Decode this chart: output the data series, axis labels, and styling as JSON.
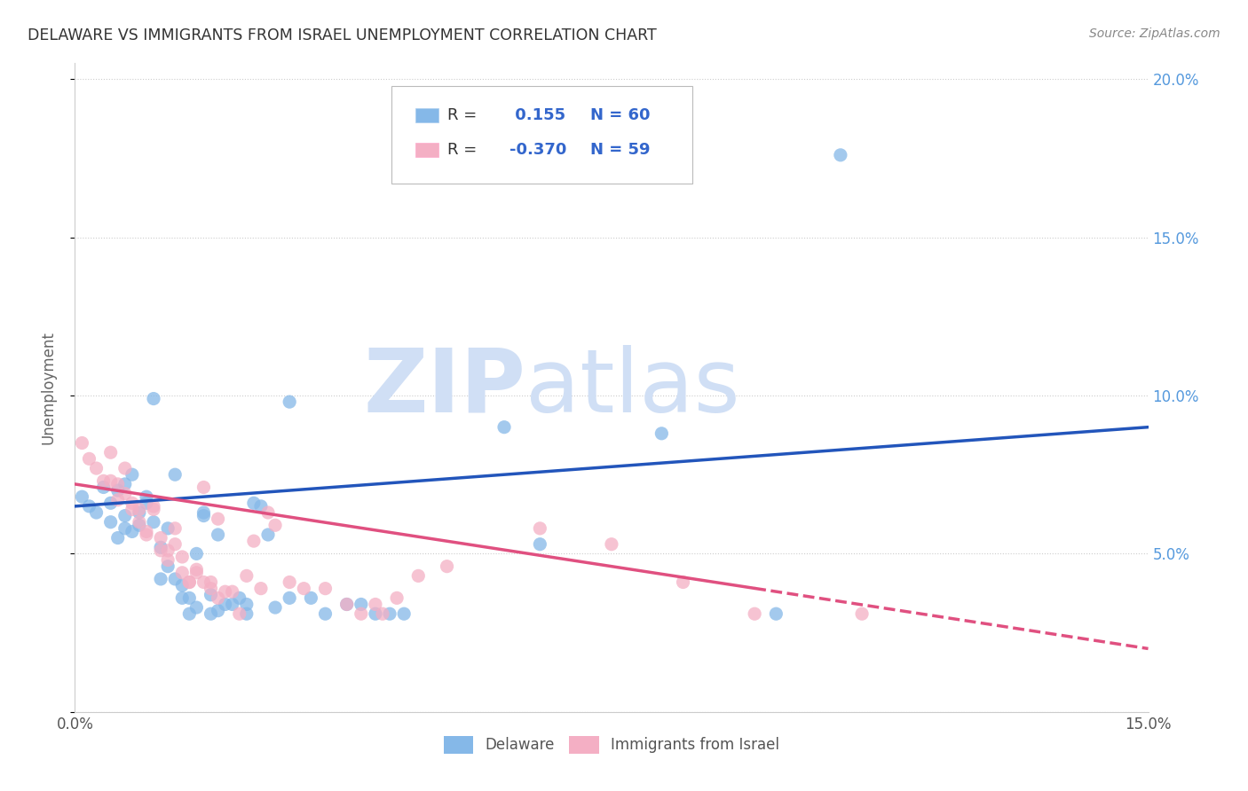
{
  "title": "DELAWARE VS IMMIGRANTS FROM ISRAEL UNEMPLOYMENT CORRELATION CHART",
  "source": "Source: ZipAtlas.com",
  "ylabel": "Unemployment",
  "x_min": 0.0,
  "x_max": 0.15,
  "y_min": 0.0,
  "y_max": 0.205,
  "delaware_color": "#85b8e8",
  "israel_color": "#f4afc4",
  "trend_delaware_color": "#2255bb",
  "trend_israel_color": "#e05080",
  "legend_label_1": "Delaware",
  "legend_label_2": "Immigrants from Israel",
  "R_delaware": 0.155,
  "N_delaware": 60,
  "R_israel": -0.37,
  "N_israel": 59,
  "watermark_zip": "ZIP",
  "watermark_atlas": "atlas",
  "watermark_color": "#d0dff5",
  "background_color": "#ffffff",
  "delaware_scatter": [
    [
      0.001,
      0.068
    ],
    [
      0.002,
      0.065
    ],
    [
      0.003,
      0.063
    ],
    [
      0.004,
      0.071
    ],
    [
      0.005,
      0.06
    ],
    [
      0.005,
      0.066
    ],
    [
      0.006,
      0.055
    ],
    [
      0.006,
      0.07
    ],
    [
      0.007,
      0.058
    ],
    [
      0.007,
      0.062
    ],
    [
      0.007,
      0.072
    ],
    [
      0.008,
      0.057
    ],
    [
      0.008,
      0.075
    ],
    [
      0.009,
      0.063
    ],
    [
      0.009,
      0.059
    ],
    [
      0.01,
      0.066
    ],
    [
      0.01,
      0.068
    ],
    [
      0.011,
      0.06
    ],
    [
      0.011,
      0.099
    ],
    [
      0.012,
      0.052
    ],
    [
      0.012,
      0.042
    ],
    [
      0.013,
      0.046
    ],
    [
      0.013,
      0.058
    ],
    [
      0.014,
      0.042
    ],
    [
      0.014,
      0.075
    ],
    [
      0.015,
      0.04
    ],
    [
      0.015,
      0.036
    ],
    [
      0.016,
      0.036
    ],
    [
      0.016,
      0.031
    ],
    [
      0.017,
      0.033
    ],
    [
      0.017,
      0.05
    ],
    [
      0.018,
      0.063
    ],
    [
      0.018,
      0.062
    ],
    [
      0.019,
      0.037
    ],
    [
      0.019,
      0.031
    ],
    [
      0.02,
      0.056
    ],
    [
      0.02,
      0.032
    ],
    [
      0.021,
      0.034
    ],
    [
      0.022,
      0.034
    ],
    [
      0.023,
      0.036
    ],
    [
      0.024,
      0.034
    ],
    [
      0.024,
      0.031
    ],
    [
      0.025,
      0.066
    ],
    [
      0.026,
      0.065
    ],
    [
      0.027,
      0.056
    ],
    [
      0.028,
      0.033
    ],
    [
      0.03,
      0.098
    ],
    [
      0.03,
      0.036
    ],
    [
      0.033,
      0.036
    ],
    [
      0.035,
      0.031
    ],
    [
      0.038,
      0.034
    ],
    [
      0.04,
      0.034
    ],
    [
      0.042,
      0.031
    ],
    [
      0.044,
      0.031
    ],
    [
      0.046,
      0.031
    ],
    [
      0.06,
      0.09
    ],
    [
      0.065,
      0.053
    ],
    [
      0.082,
      0.088
    ],
    [
      0.098,
      0.031
    ],
    [
      0.107,
      0.176
    ]
  ],
  "israel_scatter": [
    [
      0.001,
      0.085
    ],
    [
      0.002,
      0.08
    ],
    [
      0.003,
      0.077
    ],
    [
      0.004,
      0.073
    ],
    [
      0.005,
      0.073
    ],
    [
      0.005,
      0.082
    ],
    [
      0.006,
      0.072
    ],
    [
      0.006,
      0.067
    ],
    [
      0.007,
      0.077
    ],
    [
      0.007,
      0.069
    ],
    [
      0.008,
      0.064
    ],
    [
      0.008,
      0.066
    ],
    [
      0.009,
      0.064
    ],
    [
      0.009,
      0.06
    ],
    [
      0.01,
      0.056
    ],
    [
      0.01,
      0.057
    ],
    [
      0.011,
      0.064
    ],
    [
      0.011,
      0.065
    ],
    [
      0.012,
      0.055
    ],
    [
      0.012,
      0.051
    ],
    [
      0.013,
      0.048
    ],
    [
      0.013,
      0.051
    ],
    [
      0.014,
      0.053
    ],
    [
      0.014,
      0.058
    ],
    [
      0.015,
      0.049
    ],
    [
      0.015,
      0.044
    ],
    [
      0.016,
      0.041
    ],
    [
      0.016,
      0.041
    ],
    [
      0.017,
      0.045
    ],
    [
      0.017,
      0.044
    ],
    [
      0.018,
      0.041
    ],
    [
      0.018,
      0.071
    ],
    [
      0.019,
      0.041
    ],
    [
      0.019,
      0.039
    ],
    [
      0.02,
      0.061
    ],
    [
      0.02,
      0.036
    ],
    [
      0.021,
      0.038
    ],
    [
      0.022,
      0.038
    ],
    [
      0.023,
      0.031
    ],
    [
      0.024,
      0.043
    ],
    [
      0.025,
      0.054
    ],
    [
      0.026,
      0.039
    ],
    [
      0.027,
      0.063
    ],
    [
      0.028,
      0.059
    ],
    [
      0.03,
      0.041
    ],
    [
      0.032,
      0.039
    ],
    [
      0.035,
      0.039
    ],
    [
      0.038,
      0.034
    ],
    [
      0.04,
      0.031
    ],
    [
      0.042,
      0.034
    ],
    [
      0.043,
      0.031
    ],
    [
      0.045,
      0.036
    ],
    [
      0.048,
      0.043
    ],
    [
      0.052,
      0.046
    ],
    [
      0.065,
      0.058
    ],
    [
      0.075,
      0.053
    ],
    [
      0.085,
      0.041
    ],
    [
      0.095,
      0.031
    ],
    [
      0.11,
      0.031
    ]
  ],
  "trend_del_x0": 0.0,
  "trend_del_y0": 0.065,
  "trend_del_x1": 0.15,
  "trend_del_y1": 0.09,
  "trend_isr_x0": 0.0,
  "trend_isr_y0": 0.072,
  "trend_isr_x1": 0.15,
  "trend_isr_y1": 0.02,
  "trend_isr_solid_end": 0.095
}
